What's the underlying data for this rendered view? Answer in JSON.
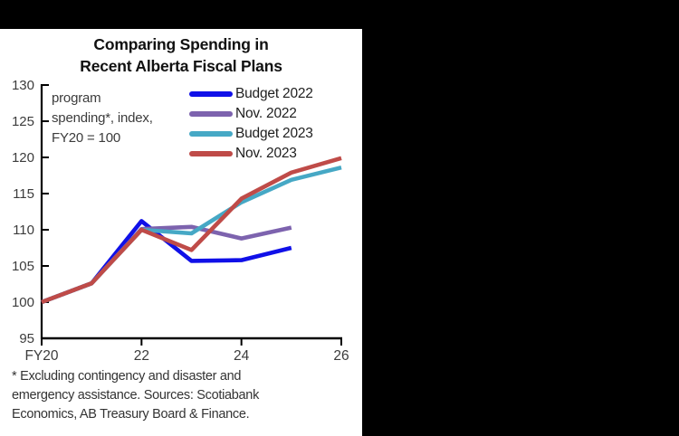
{
  "window": {
    "background": "#000000",
    "panel_background": "#ffffff"
  },
  "chart": {
    "title_line1": "Comparing Spending in",
    "title_line2": "Recent Alberta Fiscal Plans"
  },
  "chart_data": {
    "type": "line",
    "title": "Comparing Spending in Recent Alberta Fiscal Plans",
    "annotation_lines": [
      "program",
      "spending*, index,",
      "FY20 = 100"
    ],
    "x": [
      "FY20",
      "FY21",
      "FY22",
      "FY23",
      "FY24",
      "FY25",
      "FY26"
    ],
    "xticks": [
      {
        "label": "FY20",
        "index": 0
      },
      {
        "label": "22",
        "index": 2
      },
      {
        "label": "24",
        "index": 4
      },
      {
        "label": "26",
        "index": 6
      }
    ],
    "ylim": [
      95,
      130
    ],
    "ytick_step": 5,
    "grid": false,
    "legend_position": "top-right-inside",
    "series": [
      {
        "name": "Budget 2022",
        "color": "#1010e8",
        "values": [
          100,
          102.6,
          111.2,
          105.7,
          105.8,
          107.5
        ]
      },
      {
        "name": "Nov. 2022",
        "color": "#7d63ae",
        "values": [
          100,
          102.6,
          110.1,
          110.4,
          108.8,
          110.3
        ]
      },
      {
        "name": "Budget 2023",
        "color": "#46a8c5",
        "values": [
          100,
          102.6,
          110.0,
          109.5,
          113.8,
          116.9,
          118.6
        ]
      },
      {
        "name": "Nov. 2023",
        "color": "#bf4b48",
        "values": [
          100,
          102.6,
          110.0,
          107.2,
          114.3,
          117.9,
          119.9
        ]
      }
    ],
    "axis_color": "#000000",
    "tick_label_color": "#3c3c3c"
  },
  "footnote": {
    "lines": [
      "* Excluding contingency and disaster and",
      "emergency assistance. Sources: Scotiabank",
      "Economics, AB Treasury Board & Finance."
    ]
  }
}
